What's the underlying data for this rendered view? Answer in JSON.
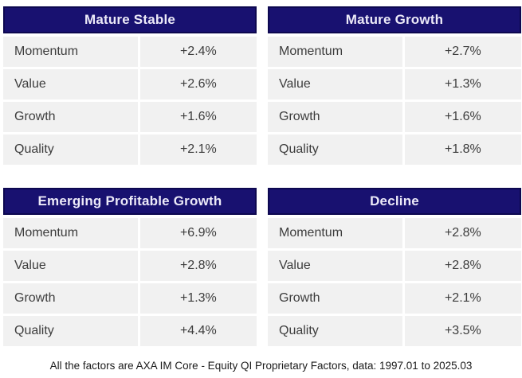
{
  "colors": {
    "header_bg": "#181170",
    "header_border": "#0d0850",
    "header_text": "#eceaf8",
    "row_bg": "#f1f1f1",
    "row_text": "#3d3d3d"
  },
  "tables": [
    {
      "title": "Mature Stable",
      "rows": [
        {
          "label": "Momentum",
          "value": "+2.4%"
        },
        {
          "label": "Value",
          "value": "+2.6%"
        },
        {
          "label": "Growth",
          "value": "+1.6%"
        },
        {
          "label": "Quality",
          "value": "+2.1%"
        }
      ]
    },
    {
      "title": "Mature Growth",
      "rows": [
        {
          "label": "Momentum",
          "value": "+2.7%"
        },
        {
          "label": "Value",
          "value": "+1.3%"
        },
        {
          "label": "Growth",
          "value": "+1.6%"
        },
        {
          "label": "Quality",
          "value": "+1.8%"
        }
      ]
    },
    {
      "title": "Emerging Profitable Growth",
      "rows": [
        {
          "label": "Momentum",
          "value": "+6.9%"
        },
        {
          "label": "Value",
          "value": "+2.8%"
        },
        {
          "label": "Growth",
          "value": "+1.3%"
        },
        {
          "label": "Quality",
          "value": "+4.4%"
        }
      ]
    },
    {
      "title": "Decline",
      "rows": [
        {
          "label": "Momentum",
          "value": "+2.8%"
        },
        {
          "label": "Value",
          "value": "+2.8%"
        },
        {
          "label": "Growth",
          "value": "+2.1%"
        },
        {
          "label": "Quality",
          "value": "+3.5%"
        }
      ]
    }
  ],
  "footer": {
    "text": "All the factors are AXA IM Core - Equity QI Proprietary Factors, data: 1997.01 to 2025.03"
  }
}
